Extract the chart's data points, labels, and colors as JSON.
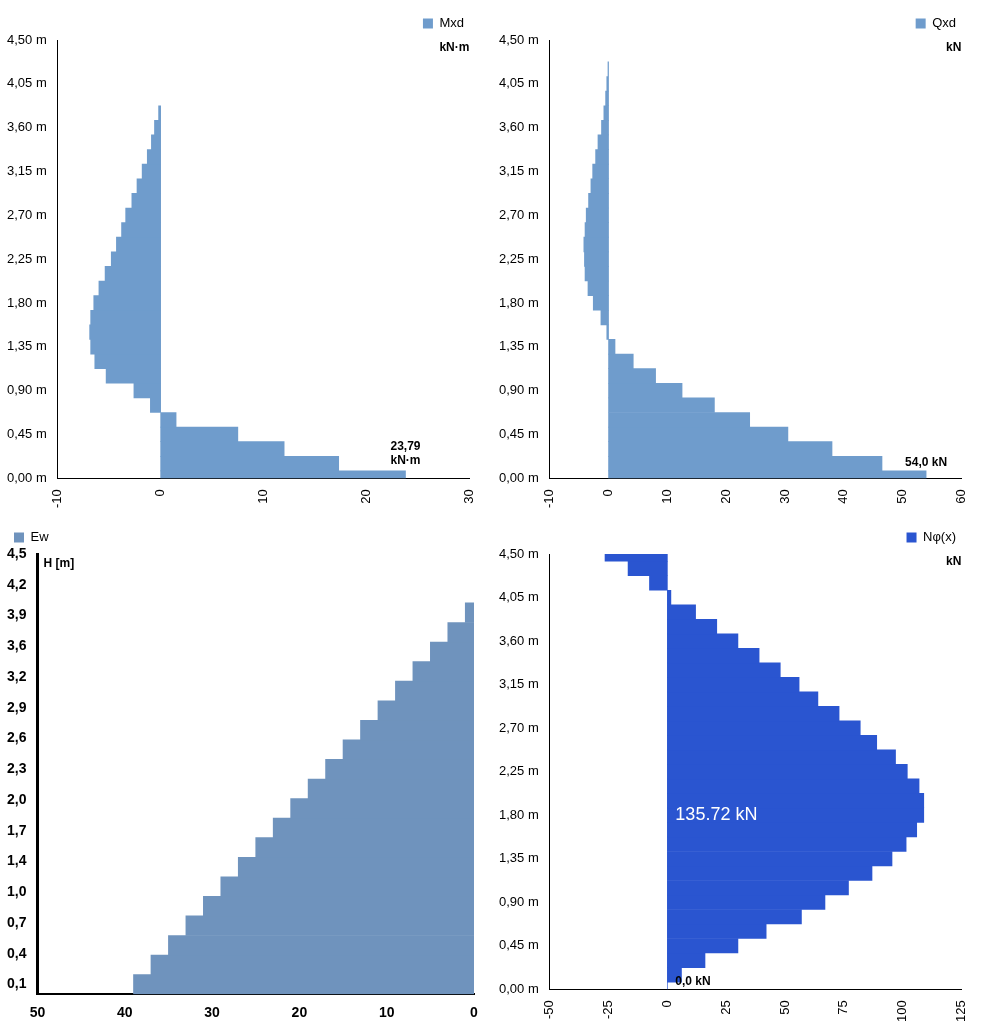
{
  "chart_data": [
    {
      "type": "bar",
      "orientation": "horizontal",
      "xlabel": "kN·m",
      "legend": "top right",
      "grid": false,
      "series": [
        {
          "name": "Mxd",
          "color": "#6f9ccc",
          "x": [
            0,
            0.15,
            0.3,
            0.45,
            0.6,
            0.75,
            0.9,
            1.05,
            1.2,
            1.35,
            1.5,
            1.65,
            1.8,
            1.95,
            2.1,
            2.25,
            2.4,
            2.55,
            2.7,
            2.85,
            3.0,
            3.15,
            3.3,
            3.45,
            3.6,
            3.75
          ],
          "values": [
            23.79,
            17.3,
            12.0,
            7.5,
            1.5,
            -1.0,
            -2.6,
            -5.3,
            -6.4,
            -6.8,
            -6.9,
            -6.8,
            -6.5,
            -6.0,
            -5.4,
            -4.8,
            -4.3,
            -3.8,
            -3.4,
            -2.8,
            -2.3,
            -1.8,
            -1.3,
            -0.9,
            -0.6,
            -0.2
          ]
        }
      ],
      "xlim": [
        -10,
        30
      ],
      "xticks": [
        -10,
        0,
        10,
        20,
        30
      ],
      "ylim": [
        0,
        4.5
      ],
      "yticks": [
        {
          "value": 0,
          "label": "0,00 m"
        },
        {
          "value": 0.45,
          "label": "0,45 m"
        },
        {
          "value": 0.9,
          "label": "0,90 m"
        },
        {
          "value": 1.35,
          "label": "1,35 m"
        },
        {
          "value": 1.8,
          "label": "1,80 m"
        },
        {
          "value": 2.25,
          "label": "2,25 m"
        },
        {
          "value": 2.7,
          "label": "2,70 m"
        },
        {
          "value": 3.15,
          "label": "3,15 m"
        },
        {
          "value": 3.6,
          "label": "3,60 m"
        },
        {
          "value": 4.05,
          "label": "4,05 m"
        },
        {
          "value": 4.5,
          "label": "4,50 m"
        }
      ],
      "annotations": [
        {
          "text": "23,79 kN·m",
          "x": 23.79,
          "y": 0
        }
      ]
    },
    {
      "type": "bar",
      "orientation": "horizontal",
      "xlabel": "kN",
      "legend": "top right",
      "grid": false,
      "series": [
        {
          "name": "Qxd",
          "color": "#6f9ccc",
          "x": [
            0,
            0.15,
            0.3,
            0.45,
            0.6,
            0.75,
            0.9,
            1.05,
            1.2,
            1.35,
            1.5,
            1.65,
            1.8,
            1.95,
            2.1,
            2.25,
            2.4,
            2.55,
            2.7,
            2.85,
            3.0,
            3.15,
            3.3,
            3.45,
            3.6,
            3.75,
            3.9,
            4.05,
            4.2
          ],
          "values": [
            54.0,
            46.5,
            38,
            30.5,
            24,
            18,
            12.5,
            8,
            4.2,
            1.1,
            -0.3,
            -1.3,
            -2.6,
            -3.5,
            -4.0,
            -4.1,
            -4.2,
            -4.0,
            -3.8,
            -3.4,
            -3.0,
            -2.7,
            -2.2,
            -1.8,
            -1.2,
            -0.8,
            -0.5,
            -0.3,
            -0.1
          ]
        }
      ],
      "xlim": [
        -10,
        60
      ],
      "xticks": [
        -10,
        0,
        10,
        20,
        30,
        40,
        50,
        60
      ],
      "ylim": [
        0,
        4.5
      ],
      "yticks": [
        {
          "value": 0,
          "label": "0,00 m"
        },
        {
          "value": 0.45,
          "label": "0,45 m"
        },
        {
          "value": 0.9,
          "label": "0,90 m"
        },
        {
          "value": 1.35,
          "label": "1,35 m"
        },
        {
          "value": 1.8,
          "label": "1,80 m"
        },
        {
          "value": 2.25,
          "label": "2,25 m"
        },
        {
          "value": 2.7,
          "label": "2,70 m"
        },
        {
          "value": 3.15,
          "label": "3,15 m"
        },
        {
          "value": 3.6,
          "label": "3,60 m"
        },
        {
          "value": 4.05,
          "label": "4,05 m"
        },
        {
          "value": 4.5,
          "label": "4,50 m"
        }
      ],
      "annotations": [
        {
          "text": "54,0 kN",
          "x": 54.0,
          "y": 0
        }
      ]
    },
    {
      "type": "bar",
      "orientation": "horizontal",
      "ylabel": "H [m]",
      "legend": "top left",
      "grid": false,
      "series": [
        {
          "name": "Ew",
          "color": "#6f93bd",
          "x": [
            0.1,
            0.3,
            0.5,
            0.7,
            0.9,
            1.1,
            1.3,
            1.5,
            1.7,
            1.9,
            2.1,
            2.3,
            2.5,
            2.7,
            2.9,
            3.1,
            3.3,
            3.5,
            3.7,
            3.9
          ],
          "values": [
            39.0,
            37.0,
            35.0,
            33.0,
            31.0,
            29.0,
            27.0,
            25.0,
            23.0,
            21.0,
            19.0,
            17.0,
            15.0,
            13.0,
            11.0,
            9.0,
            7.0,
            5.0,
            3.0,
            1.0
          ]
        }
      ],
      "xlim": [
        50,
        0
      ],
      "xticks": [
        50,
        40,
        30,
        20,
        10,
        0
      ],
      "ylim": [
        0,
        4.5
      ],
      "yticks": [
        {
          "value": 0.1,
          "label": "0,1"
        },
        {
          "value": 0.414,
          "label": "0,4"
        },
        {
          "value": 0.729,
          "label": "0,7"
        },
        {
          "value": 1.043,
          "label": "1,0"
        },
        {
          "value": 1.357,
          "label": "1,4"
        },
        {
          "value": 1.671,
          "label": "1,7"
        },
        {
          "value": 1.986,
          "label": "2,0"
        },
        {
          "value": 2.3,
          "label": "2,3"
        },
        {
          "value": 2.614,
          "label": "2,6"
        },
        {
          "value": 2.929,
          "label": "2,9"
        },
        {
          "value": 3.243,
          "label": "3,2"
        },
        {
          "value": 3.557,
          "label": "3,6"
        },
        {
          "value": 3.871,
          "label": "3,9"
        },
        {
          "value": 4.186,
          "label": "4,2"
        },
        {
          "value": 4.5,
          "label": "4,5"
        }
      ]
    },
    {
      "type": "bar",
      "orientation": "horizontal",
      "xlabel": "kN",
      "legend": "top right",
      "grid": false,
      "series": [
        {
          "name": "Nφ(x)",
          "color": "#2a55d0",
          "x": [
            0,
            0.15,
            0.3,
            0.45,
            0.6,
            0.75,
            0.9,
            1.05,
            1.2,
            1.35,
            1.5,
            1.65,
            1.8,
            1.95,
            2.1,
            2.25,
            2.4,
            2.55,
            2.7,
            2.85,
            3.0,
            3.15,
            3.3,
            3.45,
            3.6,
            3.75,
            3.9,
            4.05,
            4.2,
            4.35,
            4.5
          ],
          "values": [
            0,
            6,
            16,
            30,
            42,
            57,
            67,
            77,
            87,
            95.5,
            101.5,
            106,
            109,
            109,
            107,
            102,
            97,
            89,
            82,
            73,
            64,
            56,
            48,
            39,
            30,
            21,
            12,
            1.5,
            -7.6,
            -16.7,
            -26.5
          ]
        }
      ],
      "xlim": [
        -50,
        125
      ],
      "xticks": [
        -50,
        -25,
        0,
        25,
        50,
        75,
        100,
        125
      ],
      "ylim": [
        0,
        4.5
      ],
      "yticks": [
        {
          "value": 0,
          "label": "0,00 m"
        },
        {
          "value": 0.45,
          "label": "0,45 m"
        },
        {
          "value": 0.9,
          "label": "0,90 m"
        },
        {
          "value": 1.35,
          "label": "1,35 m"
        },
        {
          "value": 1.8,
          "label": "1,80 m"
        },
        {
          "value": 2.25,
          "label": "2,25 m"
        },
        {
          "value": 2.7,
          "label": "2,70 m"
        },
        {
          "value": 3.15,
          "label": "3,15 m"
        },
        {
          "value": 3.6,
          "label": "3,60 m"
        },
        {
          "value": 4.05,
          "label": "4,05 m"
        },
        {
          "value": 4.5,
          "label": "4,50 m"
        }
      ],
      "annotations": [
        "135.72 kN",
        {
          "text": "0,0 kN",
          "x": 0,
          "y": 0
        }
      ]
    }
  ]
}
